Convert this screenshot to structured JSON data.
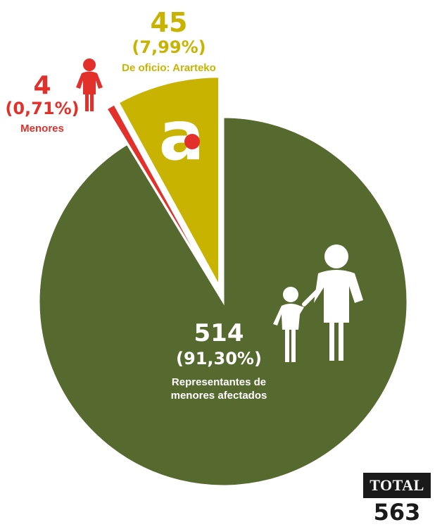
{
  "chart_data": {
    "type": "pie",
    "slices": [
      {
        "value": 514,
        "percent": "(91,30%)",
        "label_lines": [
          "Representantes de",
          "menores afectados"
        ],
        "color": "#566a2f"
      },
      {
        "value": 4,
        "percent": "(0,71%)",
        "label_lines": [
          "Menores"
        ],
        "color": "#e2302a"
      },
      {
        "value": 45,
        "percent": "(7,99%)",
        "label_lines": [
          "De oficio: Ararteko"
        ],
        "color": "#c8b400"
      }
    ],
    "total_label": "TOTAL",
    "total_value": "563"
  },
  "logo_letter": "a",
  "icons": [
    "adult-with-child-icon",
    "child-icon",
    "ararteko-logo"
  ]
}
